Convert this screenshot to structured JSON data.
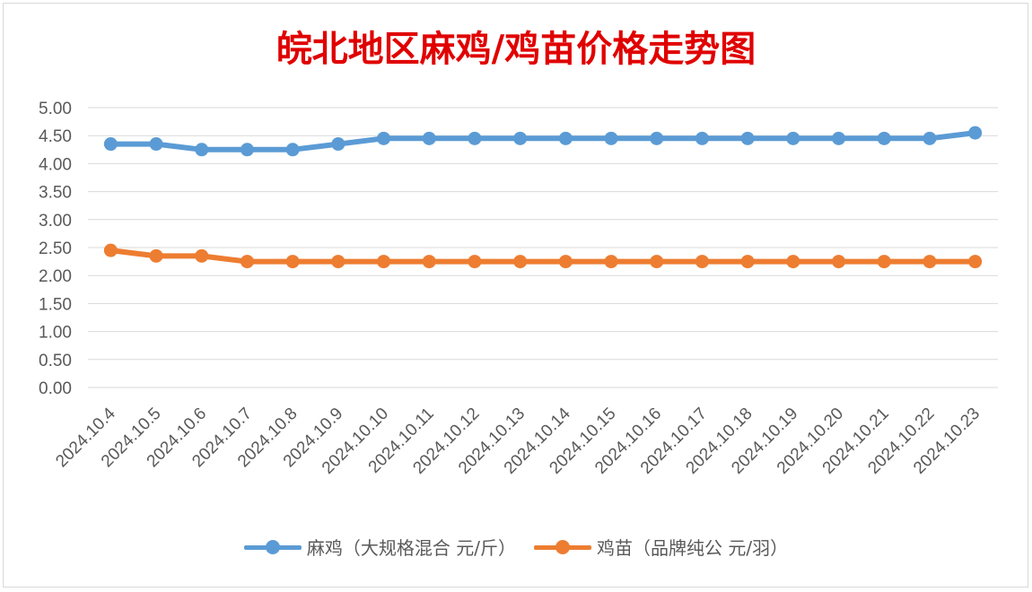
{
  "chart_data": {
    "type": "line",
    "title": "皖北地区麻鸡/鸡苗价格走势图",
    "categories": [
      "2024.10.4",
      "2024.10.5",
      "2024.10.6",
      "2024.10.7",
      "2024.10.8",
      "2024.10.9",
      "2024.10.10",
      "2024.10.11",
      "2024.10.12",
      "2024.10.13",
      "2024.10.14",
      "2024.10.15",
      "2024.10.16",
      "2024.10.17",
      "2024.10.18",
      "2024.10.19",
      "2024.10.20",
      "2024.10.21",
      "2024.10.22",
      "2024.10.23"
    ],
    "series": [
      {
        "name": "麻鸡（大规格混合 元/斤）",
        "color": "#5b9bd5",
        "values": [
          4.35,
          4.35,
          4.25,
          4.25,
          4.25,
          4.35,
          4.45,
          4.45,
          4.45,
          4.45,
          4.45,
          4.45,
          4.45,
          4.45,
          4.45,
          4.45,
          4.45,
          4.45,
          4.45,
          4.55
        ]
      },
      {
        "name": "鸡苗（品牌纯公 元/羽）",
        "color": "#ed7d31",
        "values": [
          2.45,
          2.35,
          2.35,
          2.25,
          2.25,
          2.25,
          2.25,
          2.25,
          2.25,
          2.25,
          2.25,
          2.25,
          2.25,
          2.25,
          2.25,
          2.25,
          2.25,
          2.25,
          2.25,
          2.25
        ]
      }
    ],
    "yticks": [
      "0.00",
      "0.50",
      "1.00",
      "1.50",
      "2.00",
      "2.50",
      "3.00",
      "3.50",
      "4.00",
      "4.50",
      "5.00"
    ],
    "ylim": [
      0,
      5
    ],
    "grid": true,
    "legend_position": "bottom"
  }
}
